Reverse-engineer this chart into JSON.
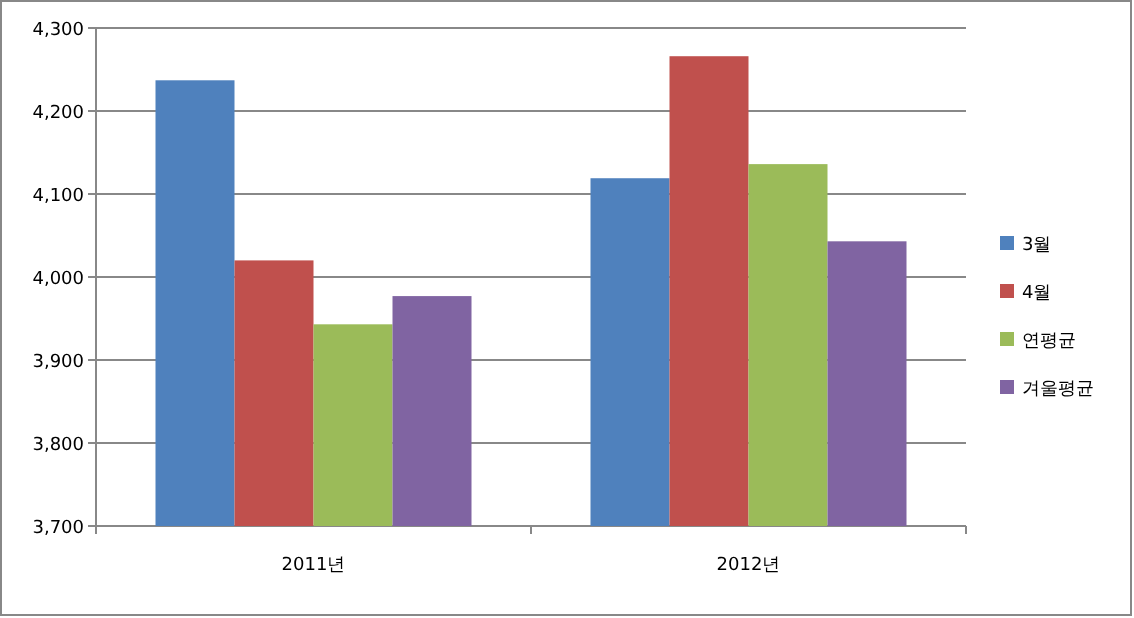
{
  "chart_data": {
    "type": "bar",
    "categories": [
      "2011년",
      "2012년"
    ],
    "series": [
      {
        "name": "3월",
        "color": "#4f81bd",
        "values": [
          4237,
          4119
        ]
      },
      {
        "name": "4월",
        "color": "#c0504d",
        "values": [
          4020,
          4266
        ]
      },
      {
        "name": "연평균",
        "color": "#9bbb59",
        "values": [
          3943,
          4136
        ]
      },
      {
        "name": "겨울평균",
        "color": "#8064a2",
        "values": [
          3977,
          4043
        ]
      }
    ],
    "ylim": [
      3700,
      4300
    ],
    "yticks": [
      {
        "value": 3700,
        "label": "3,700"
      },
      {
        "value": 3800,
        "label": "3,800"
      },
      {
        "value": 3900,
        "label": "3,900"
      },
      {
        "value": 4000,
        "label": "4,000"
      },
      {
        "value": 4100,
        "label": "4,100"
      },
      {
        "value": 4200,
        "label": "4,200"
      },
      {
        "value": 4300,
        "label": "4,300"
      }
    ],
    "grid": "y",
    "legend": "right"
  }
}
